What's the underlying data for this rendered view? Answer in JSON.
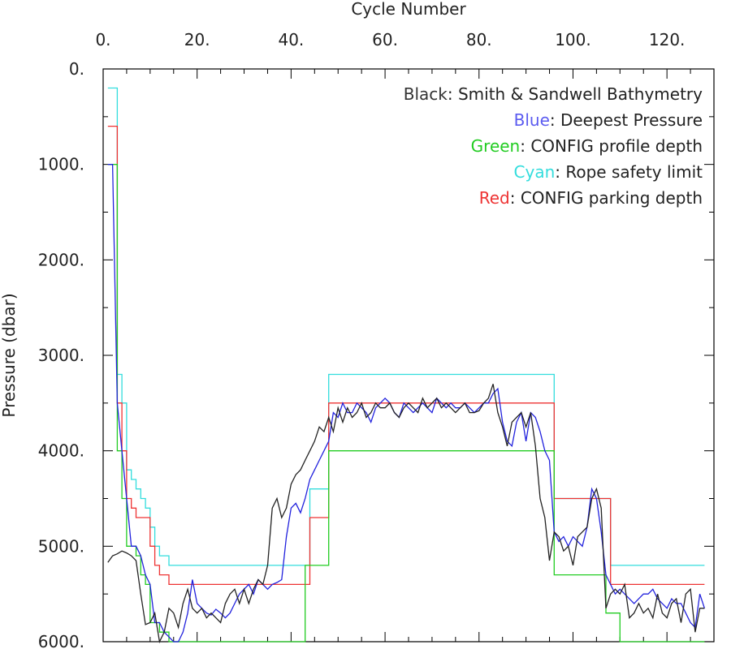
{
  "chart_data": {
    "type": "line",
    "xlabel": "Cycle Number",
    "ylabel": "Pressure (dbar)",
    "xlim": [
      0,
      130
    ],
    "ylim": [
      0,
      6000
    ],
    "y_inverted": true,
    "x_axis_position": "top",
    "x_ticks": [
      0,
      20,
      40,
      60,
      80,
      100,
      120
    ],
    "x_tick_labels": [
      "0.",
      "20.",
      "40.",
      "60.",
      "80.",
      "100.",
      "120."
    ],
    "x_minor_step": 5,
    "y_ticks": [
      0,
      1000,
      2000,
      3000,
      4000,
      5000,
      6000
    ],
    "y_tick_labels": [
      "0.",
      "1000.",
      "2000.",
      "3000.",
      "4000.",
      "5000.",
      "6000."
    ],
    "y_minor_step": 500,
    "grid": false,
    "legend": {
      "placement": "top-right",
      "entries": [
        {
          "colored": "Black",
          "text": ": Smith & Sandwell Bathymetry",
          "color": "#333333"
        },
        {
          "colored": "Blue",
          "text": ": Deepest Pressure",
          "color": "#5b5bf0"
        },
        {
          "colored": "Green",
          "text": ": CONFIG profile depth",
          "color": "#22cc22"
        },
        {
          "colored": "Cyan",
          "text": ": Rope safety limit",
          "color": "#33dddd"
        },
        {
          "colored": "Red",
          "text": ": CONFIG parking depth",
          "color": "#ee3333"
        }
      ]
    },
    "series": [
      {
        "name": "Rope safety limit",
        "color": "#33dddd",
        "step": true,
        "x": [
          1,
          3,
          4,
          5,
          6,
          7,
          8,
          9,
          10,
          11,
          12,
          14,
          16,
          44,
          48,
          96,
          97,
          108,
          110,
          128
        ],
        "y": [
          200,
          3200,
          3500,
          4200,
          4300,
          4400,
          4500,
          4600,
          4800,
          5000,
          5100,
          5200,
          5200,
          4400,
          3200,
          4500,
          4500,
          5200,
          5200,
          5200
        ]
      },
      {
        "name": "CONFIG parking depth",
        "color": "#ee3333",
        "step": true,
        "x": [
          1,
          3,
          4,
          5,
          6,
          7,
          8,
          9,
          10,
          11,
          12,
          14,
          16,
          44,
          48,
          96,
          97,
          108,
          110,
          128
        ],
        "y": [
          600,
          3500,
          4000,
          4500,
          4600,
          4700,
          4700,
          4700,
          5000,
          5200,
          5300,
          5400,
          5400,
          4700,
          3500,
          4500,
          4500,
          5400,
          5400,
          5400
        ]
      },
      {
        "name": "CONFIG profile depth",
        "color": "#22cc22",
        "step": true,
        "x": [
          1,
          3,
          4,
          5,
          6,
          7,
          8,
          9,
          10,
          11,
          12,
          14,
          16,
          43,
          48,
          96,
          97,
          107,
          110,
          128
        ],
        "y": [
          1000,
          4000,
          4500,
          5000,
          5000,
          5100,
          5300,
          5400,
          5800,
          5800,
          5900,
          6000,
          6000,
          5200,
          4000,
          5300,
          5300,
          5700,
          6000,
          6000
        ]
      },
      {
        "name": "Deepest Pressure",
        "color": "#2222dd",
        "step": false,
        "x": [
          1,
          2,
          3,
          4,
          5,
          6,
          7,
          8,
          9,
          10,
          11,
          12,
          13,
          14,
          15,
          16,
          17,
          18,
          19,
          20,
          21,
          22,
          23,
          24,
          25,
          26,
          27,
          28,
          29,
          30,
          31,
          32,
          33,
          34,
          35,
          36,
          37,
          38,
          39,
          40,
          41,
          42,
          43,
          44,
          45,
          46,
          47,
          48,
          49,
          50,
          51,
          52,
          53,
          54,
          55,
          56,
          57,
          58,
          59,
          60,
          61,
          62,
          63,
          64,
          65,
          66,
          67,
          68,
          69,
          70,
          71,
          72,
          73,
          74,
          75,
          76,
          77,
          78,
          79,
          80,
          81,
          82,
          83,
          84,
          85,
          86,
          87,
          88,
          89,
          90,
          91,
          92,
          93,
          94,
          95,
          96,
          97,
          98,
          99,
          100,
          101,
          102,
          103,
          104,
          105,
          106,
          107,
          108,
          109,
          110,
          111,
          112,
          113,
          114,
          115,
          116,
          117,
          118,
          119,
          120,
          121,
          122,
          123,
          124,
          125,
          126,
          127,
          128
        ],
        "y": [
          1000,
          1000,
          3500,
          4000,
          4500,
          5000,
          5000,
          5100,
          5300,
          5400,
          5800,
          5800,
          5900,
          5950,
          6000,
          6000,
          5900,
          5700,
          5350,
          5600,
          5650,
          5700,
          5720,
          5660,
          5700,
          5750,
          5700,
          5600,
          5500,
          5450,
          5400,
          5500,
          5350,
          5400,
          5450,
          5400,
          5380,
          5350,
          4900,
          4600,
          4550,
          4650,
          4500,
          4300,
          4200,
          4100,
          4000,
          3900,
          3600,
          3650,
          3500,
          3600,
          3600,
          3500,
          3550,
          3600,
          3700,
          3550,
          3500,
          3450,
          3500,
          3600,
          3650,
          3500,
          3550,
          3600,
          3550,
          3500,
          3550,
          3600,
          3450,
          3500,
          3550,
          3500,
          3550,
          3550,
          3500,
          3550,
          3600,
          3550,
          3500,
          3500,
          3400,
          3350,
          3700,
          3900,
          3950,
          3700,
          3600,
          3900,
          3600,
          3650,
          3800,
          4000,
          4100,
          4850,
          4950,
          4900,
          5000,
          4900,
          4950,
          5000,
          4800,
          4400,
          4500,
          4850,
          5300,
          5400,
          5500,
          5450,
          5500,
          5550,
          5600,
          5550,
          5500,
          5500,
          5450,
          5550,
          5600,
          5650,
          5550,
          5600,
          5600,
          5700,
          5800,
          5850,
          5500,
          5650
        ]
      },
      {
        "name": "Smith & Sandwell Bathymetry",
        "color": "#222222",
        "step": false,
        "x": [
          1,
          2,
          3,
          4,
          5,
          6,
          7,
          8,
          9,
          10,
          11,
          12,
          13,
          14,
          15,
          16,
          17,
          18,
          19,
          20,
          21,
          22,
          23,
          24,
          25,
          26,
          27,
          28,
          29,
          30,
          31,
          32,
          33,
          34,
          35,
          36,
          37,
          38,
          39,
          40,
          41,
          42,
          43,
          44,
          45,
          46,
          47,
          48,
          49,
          50,
          51,
          52,
          53,
          54,
          55,
          56,
          57,
          58,
          59,
          60,
          61,
          62,
          63,
          64,
          65,
          66,
          67,
          68,
          69,
          70,
          71,
          72,
          73,
          74,
          75,
          76,
          77,
          78,
          79,
          80,
          81,
          82,
          83,
          84,
          85,
          86,
          87,
          88,
          89,
          90,
          91,
          92,
          93,
          94,
          95,
          96,
          97,
          98,
          99,
          100,
          101,
          102,
          103,
          104,
          105,
          106,
          107,
          108,
          109,
          110,
          111,
          112,
          113,
          114,
          115,
          116,
          117,
          118,
          119,
          120,
          121,
          122,
          123,
          124,
          125,
          126,
          127,
          128
        ],
        "y": [
          5170,
          5100,
          5080,
          5050,
          5070,
          5100,
          5150,
          5500,
          5820,
          5800,
          5700,
          6000,
          5900,
          5650,
          5700,
          5850,
          5600,
          5450,
          5650,
          5700,
          5650,
          5750,
          5700,
          5750,
          5800,
          5600,
          5500,
          5450,
          5600,
          5450,
          5600,
          5450,
          5350,
          5400,
          5200,
          4600,
          4500,
          4700,
          4600,
          4350,
          4250,
          4200,
          4100,
          4000,
          3900,
          3750,
          3800,
          3650,
          3800,
          3550,
          3700,
          3550,
          3650,
          3600,
          3500,
          3650,
          3600,
          3500,
          3550,
          3550,
          3500,
          3600,
          3650,
          3550,
          3500,
          3550,
          3600,
          3450,
          3550,
          3500,
          3450,
          3550,
          3500,
          3550,
          3600,
          3550,
          3500,
          3600,
          3600,
          3580,
          3500,
          3450,
          3300,
          3600,
          3750,
          3950,
          3700,
          3650,
          3600,
          3750,
          3600,
          3950,
          4500,
          4700,
          5150,
          4850,
          4900,
          5050,
          5000,
          5200,
          4900,
          4850,
          4800,
          4500,
          4400,
          4600,
          5650,
          5500,
          5450,
          5500,
          5400,
          5750,
          5700,
          5600,
          5700,
          5650,
          5750,
          5500,
          5700,
          5750,
          5600,
          5550,
          5800,
          5500,
          5450,
          5900,
          5650,
          5650
        ]
      }
    ]
  }
}
